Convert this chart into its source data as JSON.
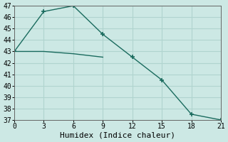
{
  "xlabel": "Humidex (Indice chaleur)",
  "ylabel": "",
  "background_color": "#cce8e4",
  "grid_color": "#b0d4cf",
  "line_color": "#1a6b5e",
  "line1_x": [
    0,
    3,
    6,
    9,
    12,
    15,
    18,
    21
  ],
  "line1_y": [
    43.0,
    46.5,
    47.0,
    44.5,
    42.5,
    40.5,
    37.5,
    37.0
  ],
  "line2_x": [
    0,
    3,
    6,
    9
  ],
  "line2_y": [
    43.0,
    43.0,
    42.8,
    42.5
  ],
  "xlim": [
    0,
    21
  ],
  "ylim": [
    37,
    47
  ],
  "xticks": [
    0,
    3,
    6,
    9,
    12,
    15,
    18,
    21
  ],
  "yticks": [
    37,
    38,
    39,
    40,
    41,
    42,
    43,
    44,
    45,
    46,
    47
  ],
  "font_family": "monospace",
  "fontsize": 8,
  "tick_fontsize": 7
}
